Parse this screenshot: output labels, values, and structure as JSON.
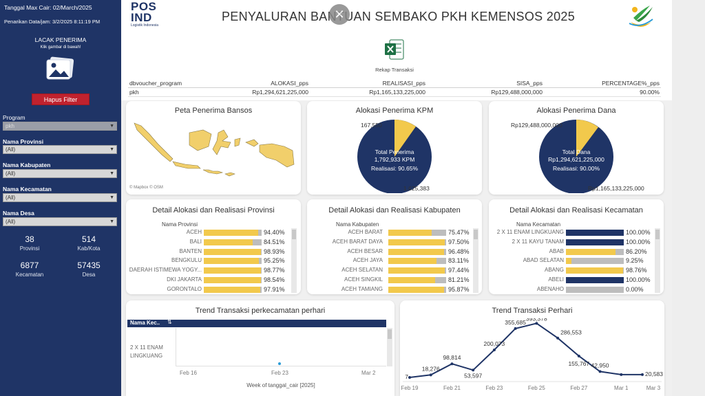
{
  "sidebar": {
    "max_date": "Tanggal Max Cair: 02/March/2025",
    "pull_date": "Penarikan Data/jam: 3/2/2025 8:11:19 PM",
    "track_title": "LACAK PENERIMA",
    "track_sub": "Klik gambar di bawah!",
    "clear_button": "Hapus Filter",
    "filters": [
      {
        "label": "Program",
        "value": "pkh",
        "bold": false
      },
      {
        "label": "Nama Provinsi",
        "value": "(All)",
        "bold": true
      },
      {
        "label": "Nama Kabupaten",
        "value": "(All)",
        "bold": true
      },
      {
        "label": "Nama Kecamatan",
        "value": "(All)",
        "bold": true
      },
      {
        "label": "Nama Desa",
        "value": "(All)",
        "bold": true
      }
    ],
    "stats": [
      {
        "value": "38",
        "label": "Provinsi"
      },
      {
        "value": "514",
        "label": "Kab/Kota"
      },
      {
        "value": "6877",
        "label": "Kecamatan"
      },
      {
        "value": "57435",
        "label": "Desa"
      }
    ]
  },
  "header": {
    "logo_line1": "POS",
    "logo_line2": "IND",
    "logo_sub": "Logistik Indonesia",
    "title": "PENYALURAN BANTUAN SEMBAKO PKH KEMENSOS 2025",
    "excel_caption": "Rekap Transaksi",
    "close_glyph": "✕"
  },
  "summary_table": {
    "headers": [
      "dbvoucher_program",
      "ALOKASI_pps",
      "REALISASI_pps",
      "SISA_pps",
      "PERCENTAGE%_pps"
    ],
    "row": [
      "pkh",
      "Rp1,294,621,225,000",
      "Rp1,165,133,225,000",
      "Rp129,488,000,000",
      "90.00%"
    ]
  },
  "map_card": {
    "title": "Peta Penerima Bansos",
    "attribution": "© Mapbox  © OSM"
  },
  "kpm_card": {
    "title": "Alokasi Penerima KPM",
    "label_small": "167,550",
    "label_large": "1,625,383",
    "center_line1": "Total Penerima",
    "center_line2": "1,792,933 KPM",
    "center_line3": "Realisasi: 90.65%"
  },
  "dana_card": {
    "title": "Alokasi Penerima Dana",
    "label_small": "Rp129,488,000,000",
    "label_large": "Rp1,165,133,225,000",
    "center_line1": "Total Dana",
    "center_line2": "Rp1,294,621,225,000",
    "center_line3": "Realisasi: 90.00%"
  },
  "prov_card": {
    "title": "Detail Alokasi dan Realisasi Provinsi",
    "col": "Nama Provinsi",
    "rows": [
      {
        "name": "ACEH",
        "pct": "94.40%",
        "v": 94.4
      },
      {
        "name": "BALI",
        "pct": "84.51%",
        "v": 84.51
      },
      {
        "name": "BANTEN",
        "pct": "98.93%",
        "v": 98.93
      },
      {
        "name": "BENGKULU",
        "pct": "95.25%",
        "v": 95.25
      },
      {
        "name": "DAERAH ISTIMEWA YOGY...",
        "pct": "98.77%",
        "v": 98.77
      },
      {
        "name": "DKI JAKARTA",
        "pct": "98.54%",
        "v": 98.54
      },
      {
        "name": "GORONTALO",
        "pct": "97.91%",
        "v": 97.91
      }
    ]
  },
  "kab_card": {
    "title": "Detail Alokasi dan Realisasi Kabupaten",
    "col": "Nama Kabupaten",
    "rows": [
      {
        "name": "ACEH BARAT",
        "pct": "75.47%",
        "v": 75.47
      },
      {
        "name": "ACEH BARAT DAYA",
        "pct": "97.50%",
        "v": 97.5
      },
      {
        "name": "ACEH BESAR",
        "pct": "96.48%",
        "v": 96.48
      },
      {
        "name": "ACEH JAYA",
        "pct": "83.11%",
        "v": 83.11
      },
      {
        "name": "ACEH SELATAN",
        "pct": "97.44%",
        "v": 97.44
      },
      {
        "name": "ACEH SINGKIL",
        "pct": "81.21%",
        "v": 81.21
      },
      {
        "name": "ACEH TAMIANG",
        "pct": "95.87%",
        "v": 95.87
      }
    ]
  },
  "kec_card": {
    "title": "Detail Alokasi dan Realisasi Kecamatan",
    "col": "Nama Kecamatan",
    "rows": [
      {
        "name": "2 X 11 ENAM LINGKUANG",
        "pct": "100.00%",
        "v": 100.0,
        "navy": true
      },
      {
        "name": "2 X 11 KAYU TANAM",
        "pct": "100.00%",
        "v": 100.0,
        "navy": true
      },
      {
        "name": "ABAB",
        "pct": "86.20%",
        "v": 86.2,
        "navy": false
      },
      {
        "name": "ABAD SELATAN",
        "pct": "9.25%",
        "v": 9.25,
        "navy": false
      },
      {
        "name": "ABANG",
        "pct": "98.76%",
        "v": 98.76,
        "navy": false
      },
      {
        "name": "ABELI",
        "pct": "100.00%",
        "v": 100.0,
        "navy": true
      },
      {
        "name": "ABENAHO",
        "pct": "0.00%",
        "v": 0.0,
        "navy": false
      }
    ]
  },
  "trend_kec": {
    "title": "Trend Transaksi perkecamatan perhari",
    "col_header": "Nama Kec..",
    "row_label_1": "2 X 11 ENAM",
    "row_label_2": "LINGKUANG",
    "x_ticks": [
      "Feb 16",
      "Feb 23",
      "Mar 2"
    ],
    "x_title": "Week of tanggal_cair [2025]"
  },
  "chart_data": {
    "type": "line",
    "title": "Trend Transaksi Perhari",
    "x": [
      "Feb 19",
      "Feb 20",
      "Feb 21",
      "Feb 22",
      "Feb 23",
      "Feb 24",
      "Feb 25",
      "Feb 26",
      "Feb 27",
      "Feb 28",
      "Mar 1",
      "Mar 2"
    ],
    "values": [
      7,
      18276,
      98814,
      53597,
      200073,
      355685,
      393378,
      286553,
      155767,
      42950,
      20583,
      20583
    ],
    "labels": [
      "7",
      "18,276",
      "98,814",
      "53,597",
      "200,073",
      "355,685",
      "393,378",
      "286,553",
      "155,767",
      "42,950",
      "",
      "20,583"
    ],
    "x_ticks": [
      "Feb 19",
      "Feb 21",
      "Feb 23",
      "Feb 25",
      "Feb 27",
      "Mar 1",
      "Mar 3"
    ],
    "color": "#1f3466"
  },
  "colors": {
    "navy": "#1f3466",
    "gold": "#f2c94c",
    "red": "#c0222e",
    "grey": "#bdbdbd"
  }
}
